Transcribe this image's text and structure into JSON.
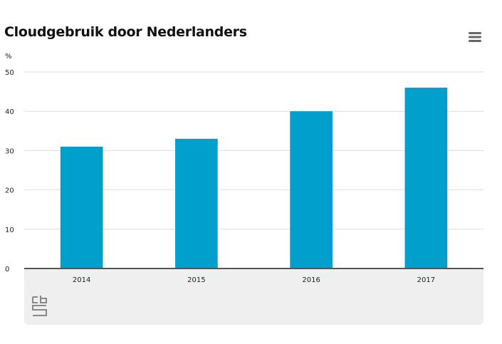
{
  "header": {
    "title": "Cloudgebruik door Nederlanders",
    "menu_icon": "hamburger-menu-icon"
  },
  "logo": {
    "icon": "cbs-logo-icon"
  },
  "colors": {
    "bar": "#009fcc",
    "grid": "#dddddd",
    "axis": "#555555",
    "footer_panel": "#efefef"
  },
  "chart_data": {
    "type": "bar",
    "title": "Cloudgebruik door Nederlanders",
    "ylabel": "%",
    "xlabel": "",
    "categories": [
      "2014",
      "2015",
      "2016",
      "2017"
    ],
    "values": [
      31,
      33,
      40,
      46
    ],
    "ylim": [
      0,
      50
    ],
    "yticks": [
      0,
      10,
      20,
      30,
      40,
      50
    ],
    "grid": true,
    "legend": "none"
  }
}
